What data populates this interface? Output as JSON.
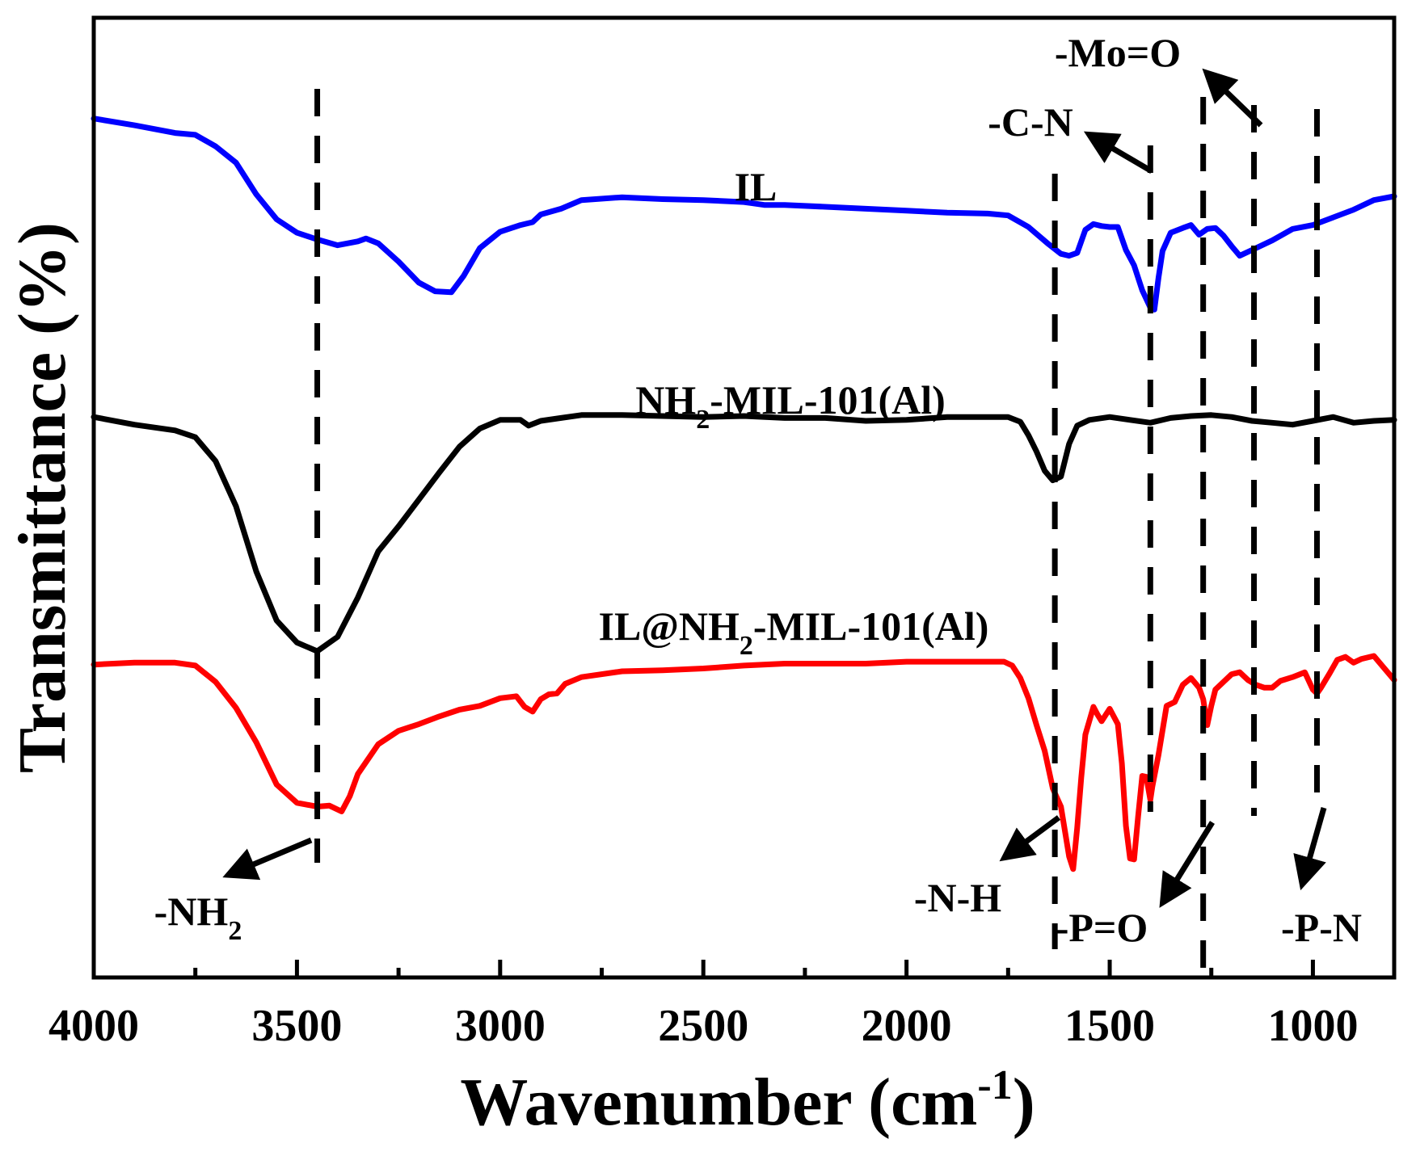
{
  "chart_data": {
    "type": "line",
    "title": "",
    "xlabel": "Wavenumber (cm",
    "xlabel_sup": "-1",
    "xlabel_close": ")",
    "ylabel": "Transmittance (%)",
    "xlim": [
      4000,
      800
    ],
    "ylim": [
      0,
      100
    ],
    "x_ticks": [
      4000,
      3500,
      3000,
      2500,
      2000,
      1500,
      1000
    ],
    "x_minor_ticks": [
      3750,
      3250,
      2750,
      2250,
      1750,
      1250
    ],
    "y_ticks_shown": false,
    "series": [
      {
        "name": "IL",
        "label_parts": [
          "IL"
        ],
        "color": "#0000ff",
        "points": [
          [
            4000,
            89.5
          ],
          [
            3900,
            88.8
          ],
          [
            3800,
            88.0
          ],
          [
            3750,
            87.8
          ],
          [
            3700,
            86.6
          ],
          [
            3650,
            84.9
          ],
          [
            3600,
            81.6
          ],
          [
            3550,
            79.0
          ],
          [
            3500,
            77.6
          ],
          [
            3450,
            76.9
          ],
          [
            3400,
            76.3
          ],
          [
            3350,
            76.7
          ],
          [
            3330,
            77.0
          ],
          [
            3300,
            76.5
          ],
          [
            3250,
            74.6
          ],
          [
            3200,
            72.4
          ],
          [
            3160,
            71.5
          ],
          [
            3120,
            71.4
          ],
          [
            3090,
            73.1
          ],
          [
            3050,
            76.0
          ],
          [
            3000,
            77.7
          ],
          [
            2950,
            78.4
          ],
          [
            2920,
            78.7
          ],
          [
            2900,
            79.5
          ],
          [
            2850,
            80.1
          ],
          [
            2800,
            81.0
          ],
          [
            2700,
            81.3
          ],
          [
            2600,
            81.1
          ],
          [
            2500,
            81.0
          ],
          [
            2400,
            80.8
          ],
          [
            2350,
            80.5
          ],
          [
            2300,
            80.5
          ],
          [
            2200,
            80.3
          ],
          [
            2100,
            80.1
          ],
          [
            2000,
            79.9
          ],
          [
            1900,
            79.7
          ],
          [
            1800,
            79.6
          ],
          [
            1750,
            79.4
          ],
          [
            1700,
            78.2
          ],
          [
            1650,
            76.4
          ],
          [
            1620,
            75.4
          ],
          [
            1600,
            75.2
          ],
          [
            1580,
            75.5
          ],
          [
            1560,
            77.9
          ],
          [
            1540,
            78.5
          ],
          [
            1520,
            78.3
          ],
          [
            1500,
            78.2
          ],
          [
            1480,
            78.2
          ],
          [
            1460,
            75.8
          ],
          [
            1440,
            74.2
          ],
          [
            1420,
            71.6
          ],
          [
            1400,
            69.8
          ],
          [
            1390,
            69.6
          ],
          [
            1380,
            72.9
          ],
          [
            1370,
            75.7
          ],
          [
            1350,
            77.6
          ],
          [
            1320,
            78.1
          ],
          [
            1300,
            78.4
          ],
          [
            1280,
            77.4
          ],
          [
            1260,
            78.0
          ],
          [
            1240,
            78.1
          ],
          [
            1220,
            77.3
          ],
          [
            1200,
            76.2
          ],
          [
            1180,
            75.2
          ],
          [
            1150,
            75.8
          ],
          [
            1100,
            76.8
          ],
          [
            1050,
            78.0
          ],
          [
            1000,
            78.4
          ],
          [
            950,
            79.2
          ],
          [
            900,
            80.0
          ],
          [
            850,
            81.0
          ],
          [
            800,
            81.4
          ]
        ]
      },
      {
        "name": "NH2-MIL-101(Al)",
        "label_parts": [
          "NH",
          "2",
          "-MIL-101(Al)"
        ],
        "color": "#000000",
        "points": [
          [
            4000,
            58.4
          ],
          [
            3900,
            57.6
          ],
          [
            3800,
            57.0
          ],
          [
            3750,
            56.3
          ],
          [
            3700,
            53.8
          ],
          [
            3650,
            49.1
          ],
          [
            3600,
            42.3
          ],
          [
            3550,
            37.2
          ],
          [
            3500,
            34.9
          ],
          [
            3450,
            34.0
          ],
          [
            3400,
            35.5
          ],
          [
            3350,
            39.6
          ],
          [
            3300,
            44.4
          ],
          [
            3250,
            47.0
          ],
          [
            3200,
            49.8
          ],
          [
            3150,
            52.6
          ],
          [
            3100,
            55.3
          ],
          [
            3050,
            57.2
          ],
          [
            3000,
            58.1
          ],
          [
            2950,
            58.1
          ],
          [
            2930,
            57.5
          ],
          [
            2900,
            58.0
          ],
          [
            2850,
            58.3
          ],
          [
            2800,
            58.6
          ],
          [
            2700,
            58.6
          ],
          [
            2600,
            58.5
          ],
          [
            2500,
            58.4
          ],
          [
            2400,
            58.5
          ],
          [
            2300,
            58.3
          ],
          [
            2200,
            58.3
          ],
          [
            2100,
            58.0
          ],
          [
            2000,
            58.1
          ],
          [
            1900,
            58.4
          ],
          [
            1800,
            58.4
          ],
          [
            1750,
            58.4
          ],
          [
            1720,
            57.9
          ],
          [
            1700,
            56.5
          ],
          [
            1680,
            54.8
          ],
          [
            1660,
            52.8
          ],
          [
            1640,
            51.8
          ],
          [
            1620,
            52.2
          ],
          [
            1600,
            55.6
          ],
          [
            1580,
            57.5
          ],
          [
            1550,
            58.1
          ],
          [
            1500,
            58.4
          ],
          [
            1450,
            58.1
          ],
          [
            1400,
            57.8
          ],
          [
            1350,
            58.3
          ],
          [
            1300,
            58.5
          ],
          [
            1250,
            58.6
          ],
          [
            1200,
            58.4
          ],
          [
            1150,
            58.0
          ],
          [
            1100,
            57.8
          ],
          [
            1050,
            57.6
          ],
          [
            1000,
            58.0
          ],
          [
            950,
            58.4
          ],
          [
            900,
            57.8
          ],
          [
            850,
            58.0
          ],
          [
            800,
            58.1
          ]
        ]
      },
      {
        "name": "IL@NH2-MIL-101(Al)",
        "label_parts": [
          "IL@NH",
          "2",
          "-MIL-101(Al)"
        ],
        "color": "#ff0000",
        "points": [
          [
            4000,
            32.6
          ],
          [
            3900,
            32.8
          ],
          [
            3800,
            32.8
          ],
          [
            3750,
            32.5
          ],
          [
            3700,
            30.8
          ],
          [
            3650,
            28.1
          ],
          [
            3600,
            24.5
          ],
          [
            3550,
            20.1
          ],
          [
            3500,
            18.2
          ],
          [
            3450,
            17.8
          ],
          [
            3420,
            17.9
          ],
          [
            3390,
            17.3
          ],
          [
            3370,
            18.9
          ],
          [
            3350,
            21.2
          ],
          [
            3300,
            24.3
          ],
          [
            3250,
            25.7
          ],
          [
            3200,
            26.4
          ],
          [
            3150,
            27.2
          ],
          [
            3100,
            27.9
          ],
          [
            3050,
            28.3
          ],
          [
            3000,
            29.1
          ],
          [
            2960,
            29.3
          ],
          [
            2940,
            28.2
          ],
          [
            2920,
            27.7
          ],
          [
            2900,
            29.0
          ],
          [
            2880,
            29.5
          ],
          [
            2860,
            29.6
          ],
          [
            2840,
            30.6
          ],
          [
            2800,
            31.3
          ],
          [
            2700,
            31.9
          ],
          [
            2600,
            32.0
          ],
          [
            2500,
            32.2
          ],
          [
            2400,
            32.5
          ],
          [
            2300,
            32.7
          ],
          [
            2200,
            32.7
          ],
          [
            2100,
            32.7
          ],
          [
            2000,
            32.9
          ],
          [
            1900,
            32.9
          ],
          [
            1800,
            32.9
          ],
          [
            1760,
            32.9
          ],
          [
            1740,
            32.5
          ],
          [
            1720,
            31.2
          ],
          [
            1700,
            29.1
          ],
          [
            1680,
            26.3
          ],
          [
            1660,
            23.6
          ],
          [
            1640,
            19.7
          ],
          [
            1620,
            17.8
          ],
          [
            1600,
            12.6
          ],
          [
            1590,
            11.3
          ],
          [
            1580,
            15.6
          ],
          [
            1570,
            20.8
          ],
          [
            1560,
            25.3
          ],
          [
            1540,
            28.2
          ],
          [
            1530,
            27.4
          ],
          [
            1520,
            26.7
          ],
          [
            1500,
            28.0
          ],
          [
            1480,
            26.4
          ],
          [
            1470,
            22.3
          ],
          [
            1460,
            15.8
          ],
          [
            1450,
            12.4
          ],
          [
            1440,
            12.3
          ],
          [
            1430,
            16.8
          ],
          [
            1420,
            21.0
          ],
          [
            1410,
            20.9
          ],
          [
            1400,
            18.5
          ],
          [
            1395,
            19.9
          ],
          [
            1380,
            23.2
          ],
          [
            1360,
            28.3
          ],
          [
            1340,
            28.7
          ],
          [
            1320,
            30.5
          ],
          [
            1300,
            31.2
          ],
          [
            1280,
            30.2
          ],
          [
            1270,
            29.0
          ],
          [
            1260,
            26.3
          ],
          [
            1250,
            28.3
          ],
          [
            1240,
            30.0
          ],
          [
            1220,
            30.8
          ],
          [
            1200,
            31.6
          ],
          [
            1180,
            31.8
          ],
          [
            1160,
            31.0
          ],
          [
            1140,
            30.5
          ],
          [
            1120,
            30.2
          ],
          [
            1100,
            30.2
          ],
          [
            1080,
            30.9
          ],
          [
            1050,
            31.3
          ],
          [
            1020,
            31.8
          ],
          [
            1000,
            30.0
          ],
          [
            990,
            29.6
          ],
          [
            980,
            30.2
          ],
          [
            960,
            31.6
          ],
          [
            940,
            33.1
          ],
          [
            920,
            33.4
          ],
          [
            900,
            32.8
          ],
          [
            880,
            33.2
          ],
          [
            850,
            33.5
          ],
          [
            830,
            32.5
          ],
          [
            800,
            31.0
          ]
        ]
      }
    ],
    "reference_lines": [
      3450,
      1635,
      1400,
      1270,
      1145,
      990
    ],
    "annotations": [
      {
        "label_parts": [
          "-NH",
          "2",
          ""
        ],
        "target": 3450,
        "position": "bottom-left"
      },
      {
        "label_parts": [
          "-N-H",
          "",
          ""
        ],
        "target": 1635,
        "position": "bottom"
      },
      {
        "label_parts": [
          "-P=O",
          "",
          ""
        ],
        "target": 1270,
        "position": "bottom"
      },
      {
        "label_parts": [
          "-P-N",
          "",
          ""
        ],
        "target": 990,
        "position": "bottom"
      },
      {
        "label_parts": [
          "-C-N",
          "",
          ""
        ],
        "target": 1400,
        "position": "top"
      },
      {
        "label_parts": [
          "-Mo=O",
          "",
          ""
        ],
        "target": 1145,
        "position": "top"
      }
    ]
  }
}
